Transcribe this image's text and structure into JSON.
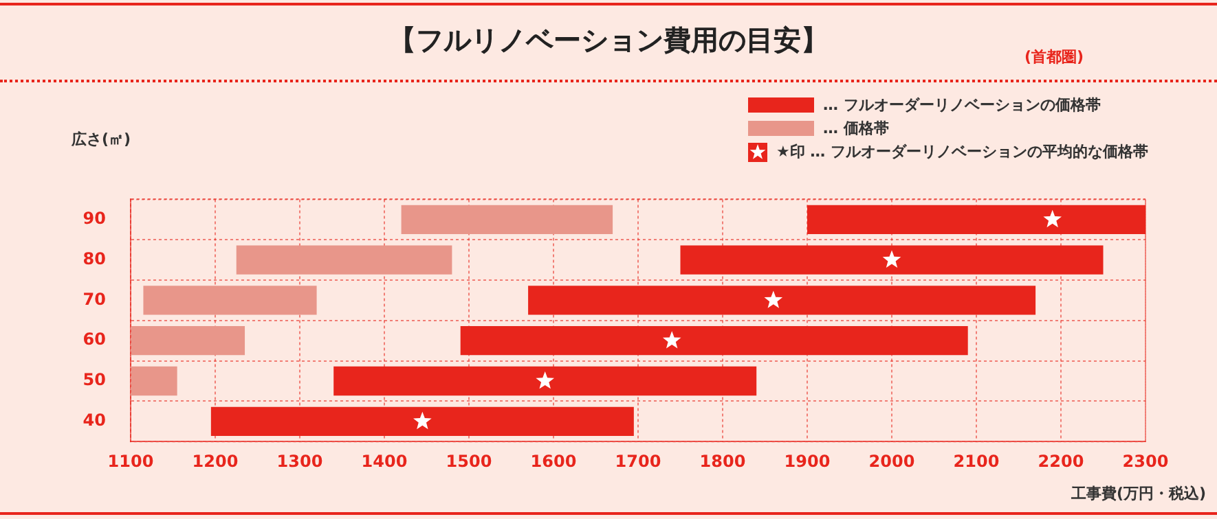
{
  "chart_data": {
    "type": "bar",
    "orientation": "horizontal",
    "title": "【フルリノベーション費用の目安】",
    "subtitle": "(首都圏)",
    "ylabel": "広さ(㎡)",
    "xlabel": "工事費(万円・税込)",
    "categories": [
      "90",
      "80",
      "70",
      "60",
      "50",
      "40"
    ],
    "series": [
      {
        "name": "… フルオーダーリノベーションの価格帯",
        "color": "#e8251c",
        "base": [
          1900,
          1750,
          1570,
          1490,
          1340,
          1195
        ],
        "values": [
          400,
          500,
          600,
          600,
          500,
          500
        ]
      },
      {
        "name": "… 価格帯",
        "color": "#e8968a",
        "base": [
          1420,
          1225,
          1115,
          1100,
          1100,
          null
        ],
        "values": [
          250,
          255,
          205,
          135,
          55,
          null
        ]
      },
      {
        "name": "★印 … フルオーダーリノベーションの平均的な価格帯",
        "type": "scatter",
        "marker": "star",
        "color": "#ffffff",
        "values": [
          2190,
          2000,
          1860,
          1740,
          1590,
          1445
        ]
      }
    ],
    "xlim": [
      1100,
      2300
    ],
    "xticks": [
      1100,
      1200,
      1300,
      1400,
      1500,
      1600,
      1700,
      1800,
      1900,
      2000,
      2100,
      2200,
      2300
    ],
    "grid": true,
    "legend": "top right"
  }
}
